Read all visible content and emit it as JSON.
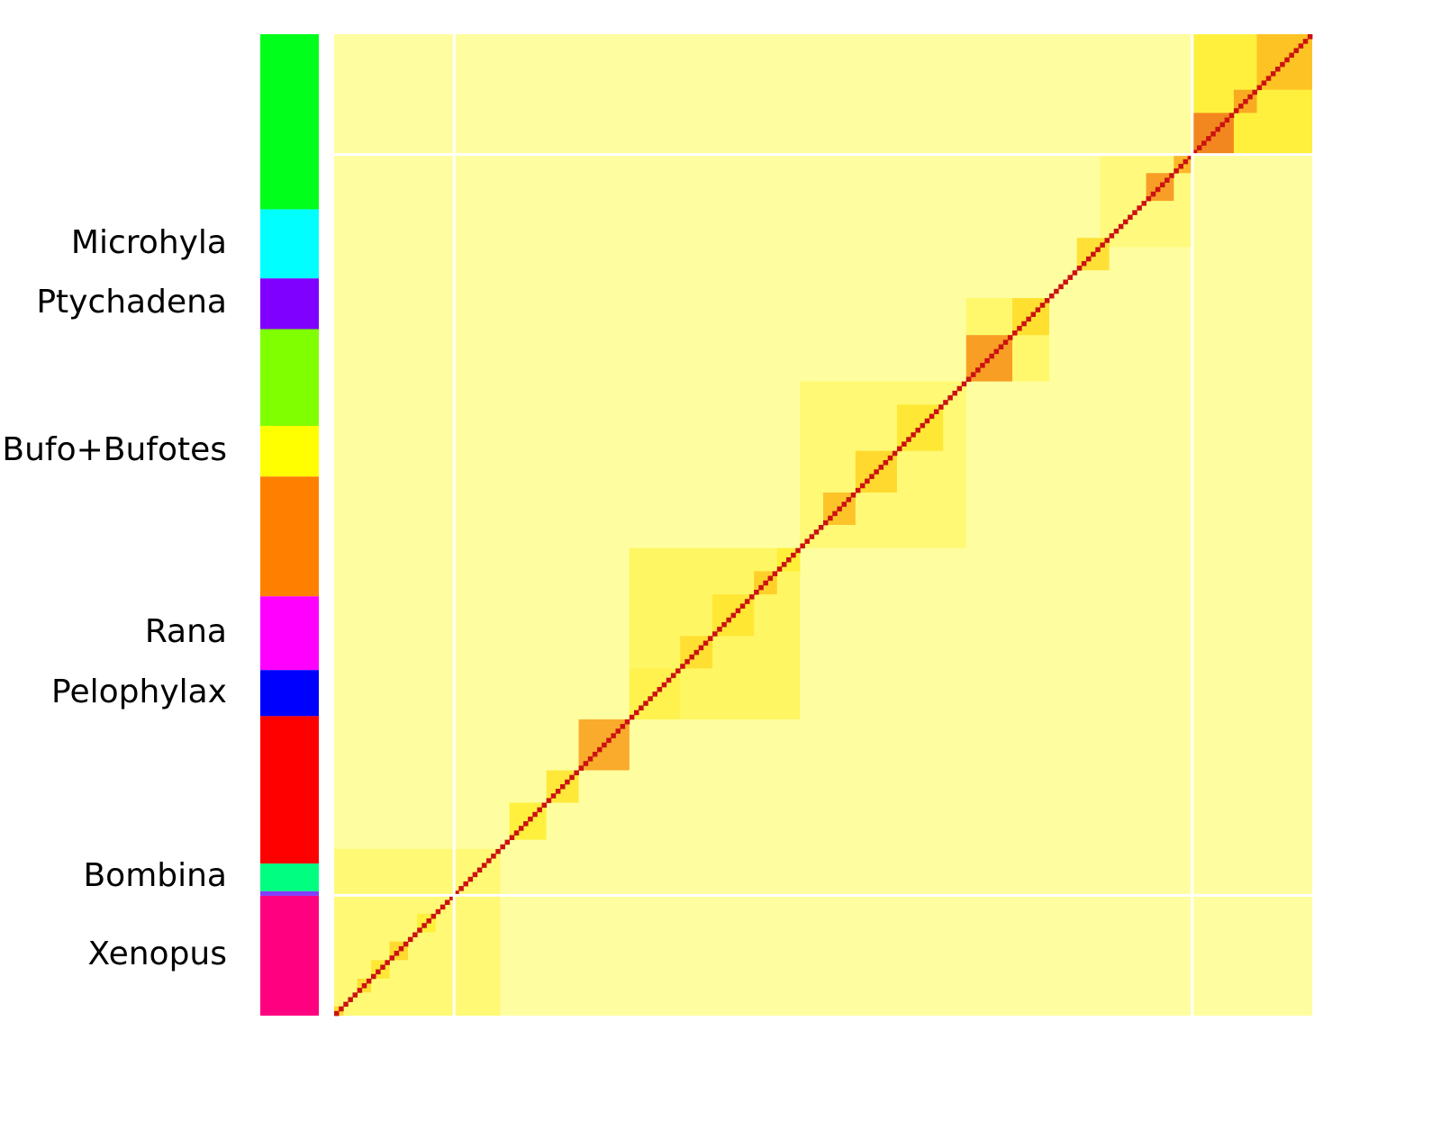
{
  "chart_data": {
    "type": "heatmap",
    "title": "",
    "xlabel": "",
    "ylabel": "",
    "color_scale": [
      "#ffff99",
      "#ffee33",
      "#ffcc22",
      "#f7941d",
      "#e03018",
      "#cc0000"
    ],
    "diagonal_color": "#cc1111",
    "background_color": "#fefea0",
    "n_taxa": 212,
    "group_bar": [
      {
        "label": "",
        "color": "#00ff1a",
        "weight": 38
      },
      {
        "label": "Microhyla",
        "color": "#00ffff",
        "weight": 15
      },
      {
        "label": "Ptychadena",
        "color": "#8000ff",
        "weight": 11
      },
      {
        "label": "",
        "color": "#80ff00",
        "weight": 21
      },
      {
        "label": "Bufo+Bufotes",
        "color": "#ffff00",
        "weight": 11
      },
      {
        "label": "",
        "color": "#ff8000",
        "weight": 26
      },
      {
        "label": "Rana",
        "color": "#ff00ff",
        "weight": 16
      },
      {
        "label": "Pelophylax",
        "color": "#0000ff",
        "weight": 10
      },
      {
        "label": "",
        "color": "#ff0000",
        "weight": 32
      },
      {
        "label": "Bombina",
        "color": "#00ff80",
        "weight": 6
      },
      {
        "label": "",
        "color": "#8040ff",
        "weight": 1
      },
      {
        "label": "Xenopus",
        "color": "#ff0080",
        "weight": 26
      }
    ],
    "blocks": [
      {
        "from": 0,
        "to": 2,
        "level": 0.35
      },
      {
        "from": 5,
        "to": 8,
        "level": 0.3
      },
      {
        "from": 8,
        "to": 12,
        "level": 0.25
      },
      {
        "from": 12,
        "to": 16,
        "level": 0.35
      },
      {
        "from": 18,
        "to": 22,
        "level": 0.2
      },
      {
        "from": 38,
        "to": 46,
        "level": 0.2
      },
      {
        "from": 46,
        "to": 53,
        "level": 0.25
      },
      {
        "from": 53,
        "to": 64,
        "level": 0.55
      },
      {
        "from": 64,
        "to": 75,
        "level": 0.15
      },
      {
        "from": 75,
        "to": 82,
        "level": 0.3
      },
      {
        "from": 82,
        "to": 91,
        "level": 0.25
      },
      {
        "from": 91,
        "to": 96,
        "level": 0.4
      },
      {
        "from": 96,
        "to": 101,
        "level": 0.2
      },
      {
        "from": 106,
        "to": 113,
        "level": 0.45
      },
      {
        "from": 113,
        "to": 122,
        "level": 0.35
      },
      {
        "from": 122,
        "to": 132,
        "level": 0.25
      },
      {
        "from": 137,
        "to": 147,
        "level": 0.6
      },
      {
        "from": 147,
        "to": 155,
        "level": 0.3
      },
      {
        "from": 161,
        "to": 168,
        "level": 0.3
      },
      {
        "from": 176,
        "to": 182,
        "level": 0.6
      },
      {
        "from": 182,
        "to": 186,
        "level": 0.5
      },
      {
        "from": 186,
        "to": 195,
        "level": 0.65
      },
      {
        "from": 195,
        "to": 200,
        "level": 0.55
      },
      {
        "from": 200,
        "to": 212,
        "level": 0.45
      }
    ],
    "cluster_blocks": [
      {
        "from": 0,
        "to": 36,
        "level": 0.08
      },
      {
        "from": 64,
        "to": 101,
        "level": 0.12
      },
      {
        "from": 101,
        "to": 137,
        "level": 0.08
      },
      {
        "from": 137,
        "to": 155,
        "level": 0.1
      },
      {
        "from": 166,
        "to": 186,
        "level": 0.06
      },
      {
        "from": 186,
        "to": 212,
        "level": 0.2
      }
    ],
    "separators": [
      26,
      186
    ]
  }
}
